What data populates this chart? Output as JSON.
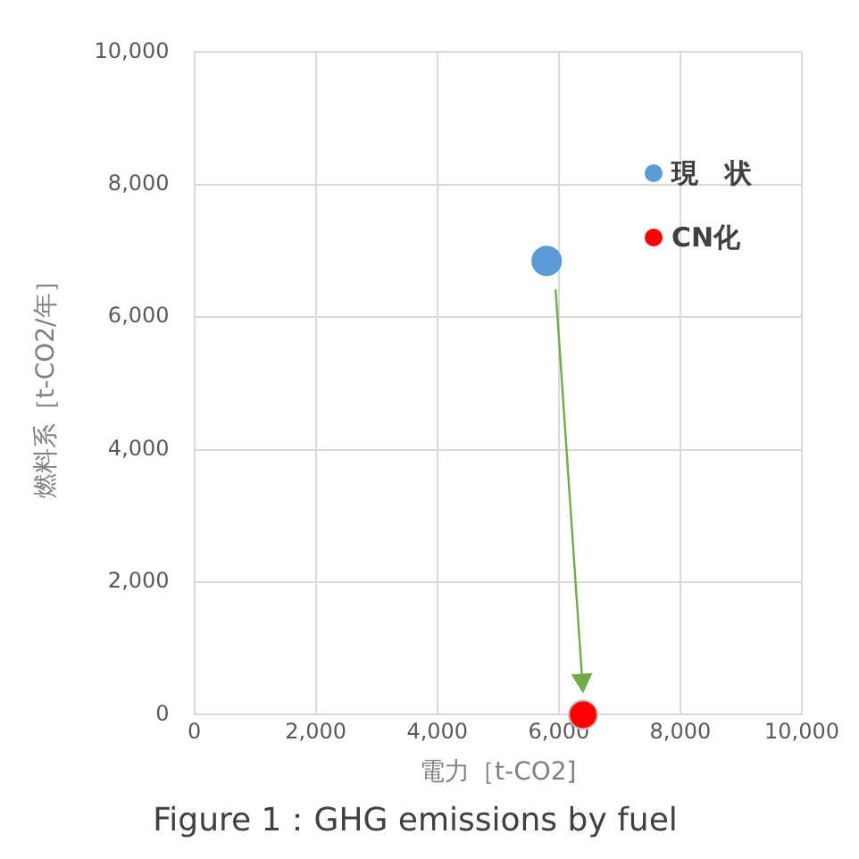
{
  "chart_data": {
    "type": "scatter",
    "title": "Figure 1：GHG emissions by fuel",
    "xlabel": "電力［t-CO2]",
    "ylabel": "燃料系［t-CO2/年］",
    "series": [
      {
        "name": "現　状",
        "color": "#5b9bd5",
        "x": [
          5800
        ],
        "values": [
          6850
        ]
      },
      {
        "name": "CN化",
        "color": "#ff0000",
        "x": [
          6400
        ],
        "values": [
          0
        ]
      }
    ],
    "xlim": [
      0,
      10000
    ],
    "xticks": [
      0,
      {
        "value": 2000,
        "label": "2,000"
      },
      {
        "value": 4000,
        "label": "4,000"
      },
      {
        "value": 6000,
        "label": "6,000"
      },
      {
        "value": 8000,
        "label": "8,000"
      },
      {
        "value": 10000,
        "label": "10,000"
      }
    ],
    "ylim": [
      0,
      10000
    ],
    "yticks": [
      0,
      {
        "value": 2000,
        "label": "2,000"
      },
      {
        "value": 4000,
        "label": "4,000"
      },
      {
        "value": 6000,
        "label": "6,000"
      },
      {
        "value": 8000,
        "label": "8,000"
      },
      {
        "value": 10000,
        "label": "10,000"
      }
    ],
    "grid": true,
    "legend": "top right",
    "marker": "circle"
  }
}
